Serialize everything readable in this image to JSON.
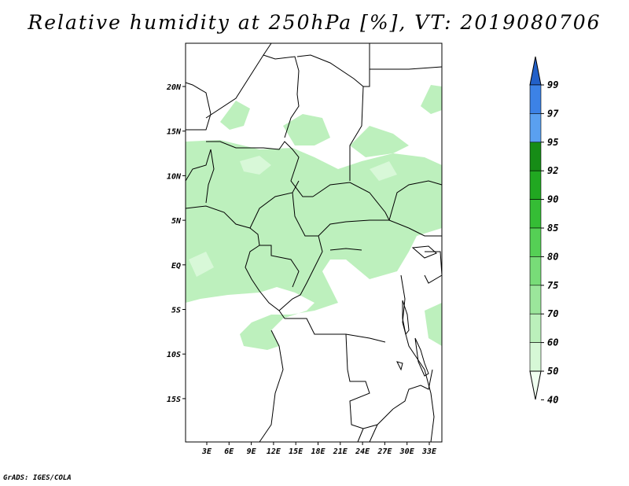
{
  "title": "Relative humidity at 250hPa [%], VT: 2019080706",
  "credit": "GrADS: IGES/COLA",
  "lat_labels": [
    "20N",
    "15N",
    "10N",
    "5N",
    "EQ",
    "5S",
    "10S",
    "15S"
  ],
  "lon_labels": [
    "3E",
    "6E",
    "9E",
    "12E",
    "15E",
    "18E",
    "21E",
    "24E",
    "27E",
    "30E",
    "33E"
  ],
  "colorbar": {
    "labels": [
      "99",
      "97",
      "95",
      "92",
      "90",
      "85",
      "80",
      "75",
      "70",
      "60",
      "50",
      "40"
    ],
    "colors": [
      "#2260c8",
      "#3c82e6",
      "#5aa0f0",
      "#168c16",
      "#21a821",
      "#35bd35",
      "#55d055",
      "#78dc78",
      "#9be69b",
      "#bbf0bb",
      "#d6f8d6",
      "#f0fff0"
    ]
  },
  "map_colors": {
    "moist": "#bdf0bd",
    "very_moist": "#d8f8d8",
    "land": "#ffffff",
    "border": "#000000"
  }
}
